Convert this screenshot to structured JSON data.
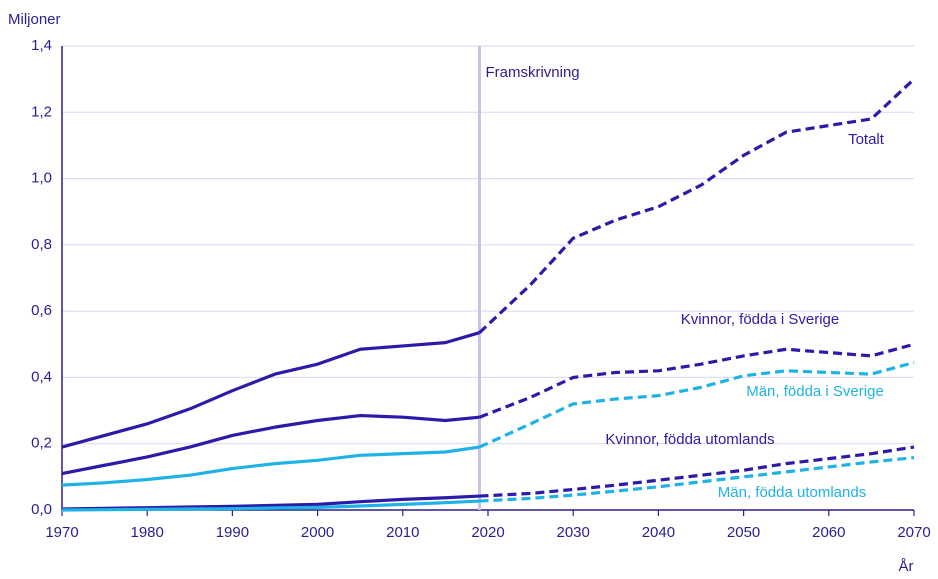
{
  "chart_data": {
    "type": "line",
    "y_label": "Miljoner",
    "x_label": "År",
    "annotation": "Framskrivning",
    "projection_start": 2019,
    "x": [
      1970,
      1975,
      1980,
      1985,
      1990,
      1995,
      2000,
      2005,
      2010,
      2015,
      2019,
      2025,
      2030,
      2035,
      2040,
      2045,
      2050,
      2055,
      2060,
      2065,
      2070
    ],
    "series": [
      {
        "name": "Totalt",
        "color": "#2b1ba8",
        "values": [
          0.19,
          0.225,
          0.26,
          0.305,
          0.36,
          0.41,
          0.44,
          0.485,
          0.495,
          0.505,
          0.535,
          0.68,
          0.82,
          0.875,
          0.915,
          0.98,
          1.07,
          1.14,
          1.16,
          1.18,
          1.3
        ]
      },
      {
        "name": "Kvinnor, födda i Sverige",
        "color": "#2b1ba8",
        "values": [
          0.11,
          0.135,
          0.16,
          0.19,
          0.225,
          0.25,
          0.27,
          0.285,
          0.28,
          0.27,
          0.28,
          0.34,
          0.4,
          0.415,
          0.42,
          0.44,
          0.465,
          0.485,
          0.475,
          0.465,
          0.5
        ]
      },
      {
        "name": "Män, födda i Sverige",
        "color": "#1fb3e5",
        "values": [
          0.075,
          0.082,
          0.092,
          0.105,
          0.125,
          0.14,
          0.15,
          0.165,
          0.17,
          0.175,
          0.19,
          0.26,
          0.32,
          0.335,
          0.345,
          0.37,
          0.405,
          0.42,
          0.415,
          0.41,
          0.445
        ]
      },
      {
        "name": "Kvinnor, födda utomlands",
        "color": "#2b1ba8",
        "values": [
          0.003,
          0.005,
          0.007,
          0.009,
          0.011,
          0.014,
          0.017,
          0.025,
          0.032,
          0.037,
          0.042,
          0.05,
          0.062,
          0.075,
          0.09,
          0.105,
          0.12,
          0.14,
          0.155,
          0.17,
          0.19
        ]
      },
      {
        "name": "Män, födda utomlands",
        "color": "#1fb3e5",
        "values": [
          0,
          0.001,
          0.002,
          0.003,
          0.004,
          0.006,
          0.008,
          0.012,
          0.017,
          0.022,
          0.027,
          0.035,
          0.045,
          0.057,
          0.07,
          0.085,
          0.1,
          0.115,
          0.13,
          0.145,
          0.158
        ]
      }
    ],
    "xlim": [
      1970,
      2070
    ],
    "xticks": [
      1970,
      1980,
      1990,
      2000,
      2010,
      2020,
      2030,
      2040,
      2050,
      2060,
      2070
    ],
    "ylim": [
      0,
      1.4
    ],
    "yticks": [
      {
        "value": 0,
        "label": "0,0"
      },
      {
        "value": 0.2,
        "label": "0,2"
      },
      {
        "value": 0.4,
        "label": "0,4"
      },
      {
        "value": 0.6,
        "label": "0,6"
      },
      {
        "value": 0.8,
        "label": "0,8"
      },
      {
        "value": 1.0,
        "label": "1,0"
      },
      {
        "value": 1.2,
        "label": "1,2"
      },
      {
        "value": 1.4,
        "label": "1,4"
      }
    ],
    "grid": true
  }
}
